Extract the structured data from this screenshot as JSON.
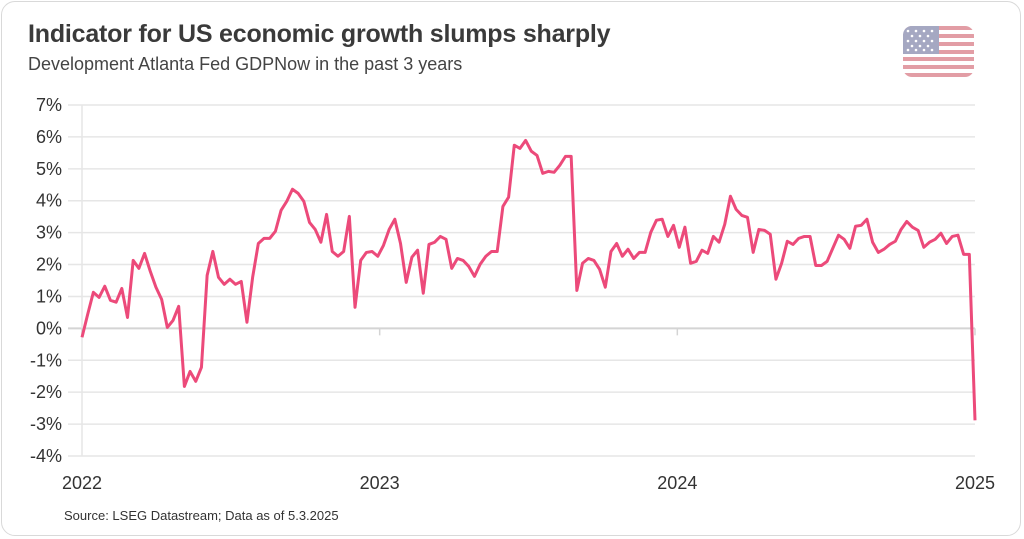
{
  "header": {
    "title": "Indicator for US economic growth slumps sharply",
    "subtitle": "Development Atlanta Fed GDPNow in the past 3 years",
    "flag_icon": "us-flag-icon"
  },
  "footer": {
    "source": "Source: LSEG Datastream; Data as of 5.3.2025"
  },
  "colors": {
    "line": "#ec4a7a",
    "grid": "#e6e6e6",
    "zero_line": "#d4d4d4",
    "text": "#333333"
  },
  "chart_data": {
    "type": "line",
    "title": "Indicator for US economic growth slumps sharply",
    "subtitle": "Development Atlanta Fed GDPNow in the past 3 years",
    "xlabel": "",
    "ylabel": "",
    "xlim": [
      2022,
      2025
    ],
    "ylim": [
      -4,
      7
    ],
    "x_ticks": [
      "2022",
      "2023",
      "2024",
      "2025"
    ],
    "y_ticks": [
      "7%",
      "6%",
      "5%",
      "4%",
      "3%",
      "2%",
      "1%",
      "0%",
      "-1%",
      "-2%",
      "-3%",
      "-4%"
    ],
    "grid": "horizontal",
    "legend": "none",
    "series": [
      {
        "values": [
          -0.28,
          0.44,
          1.13,
          0.97,
          1.32,
          0.88,
          0.82,
          1.25,
          0.34,
          2.13,
          1.88,
          2.35,
          1.79,
          1.29,
          0.91,
          0.03,
          0.25,
          0.69,
          -1.82,
          -1.35,
          -1.66,
          -1.22,
          1.66,
          2.41,
          1.6,
          1.38,
          1.54,
          1.38,
          1.47,
          0.19,
          1.6,
          2.66,
          2.82,
          2.82,
          3.04,
          3.7,
          3.98,
          4.36,
          4.23,
          3.98,
          3.32,
          3.1,
          2.7,
          3.57,
          2.41,
          2.26,
          2.41,
          3.51,
          0.66,
          2.13,
          2.38,
          2.41,
          2.26,
          2.6,
          3.1,
          3.42,
          2.66,
          1.44,
          2.23,
          2.45,
          1.1,
          2.63,
          2.7,
          2.88,
          2.79,
          1.88,
          2.19,
          2.13,
          1.94,
          1.63,
          2.01,
          2.26,
          2.41,
          2.41,
          3.82,
          4.11,
          5.74,
          5.64,
          5.89,
          5.55,
          5.42,
          4.86,
          4.92,
          4.89,
          5.11,
          5.39,
          5.39,
          1.19,
          2.04,
          2.19,
          2.13,
          1.85,
          1.29,
          2.41,
          2.66,
          2.26,
          2.48,
          2.19,
          2.38,
          2.38,
          3.01,
          3.39,
          3.42,
          2.88,
          3.23,
          2.54,
          3.17,
          2.04,
          2.1,
          2.45,
          2.35,
          2.88,
          2.7,
          3.26,
          4.14,
          3.73,
          3.54,
          3.48,
          2.38,
          3.1,
          3.07,
          2.95,
          1.54,
          2.04,
          2.73,
          2.63,
          2.82,
          2.88,
          2.88,
          1.97,
          1.97,
          2.1,
          2.51,
          2.92,
          2.79,
          2.51,
          3.2,
          3.23,
          3.42,
          2.7,
          2.38,
          2.48,
          2.63,
          2.73,
          3.1,
          3.35,
          3.17,
          3.07,
          2.54,
          2.7,
          2.79,
          2.98,
          2.66,
          2.88,
          2.92,
          2.32,
          2.32,
          -2.88
        ]
      }
    ]
  }
}
